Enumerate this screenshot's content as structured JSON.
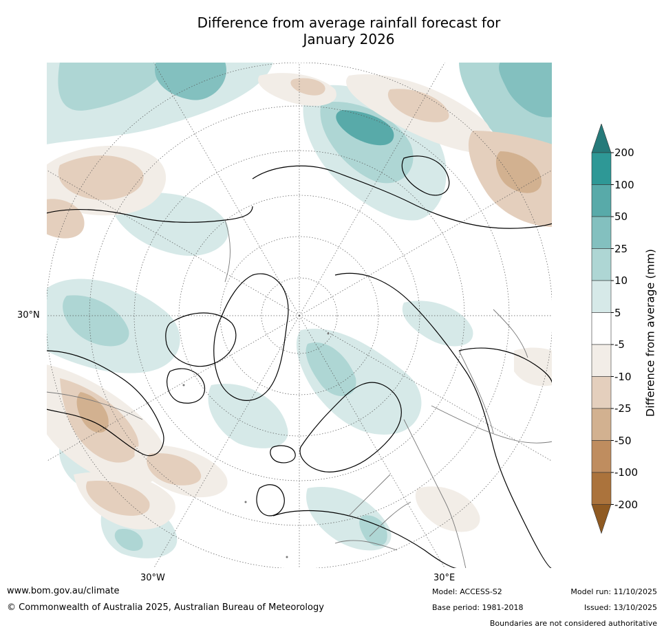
{
  "title_line1": "Difference from average rainfall forecast for",
  "title_line2": "January 2026",
  "map": {
    "projection": "north polar stereographic",
    "lat_label": "30°N",
    "lon_labels": [
      "30°W",
      "30°E"
    ],
    "colors": {
      "land_outline": "#000000",
      "border": "#777777",
      "graticule": "#555555"
    }
  },
  "colorbar": {
    "label": "Difference from average (mm)",
    "ticks": [
      "200",
      "100",
      "50",
      "25",
      "10",
      "5",
      "-5",
      "-10",
      "-25",
      "-50",
      "-100",
      "-200"
    ],
    "colors": [
      "#267a7a",
      "#2e9896",
      "#58aaa9",
      "#83c0bf",
      "#aed6d4",
      "#d6e9e8",
      "#ffffff",
      "#f2ede7",
      "#e4cfbd",
      "#d2b190",
      "#bf8d5f",
      "#ab733c",
      "#8f5a22"
    ]
  },
  "footer": {
    "url": "www.bom.gov.au/climate",
    "copyright": "© Commonwealth of Australia 2025, Australian Bureau of Meteorology",
    "model": "Model: ACCESS-S2",
    "base_period": "Base period: 1981-2018",
    "model_run": "Model run: 11/10/2025",
    "issued": "Issued: 13/10/2025",
    "disclaimer": "Boundaries are not considered authoritative"
  }
}
